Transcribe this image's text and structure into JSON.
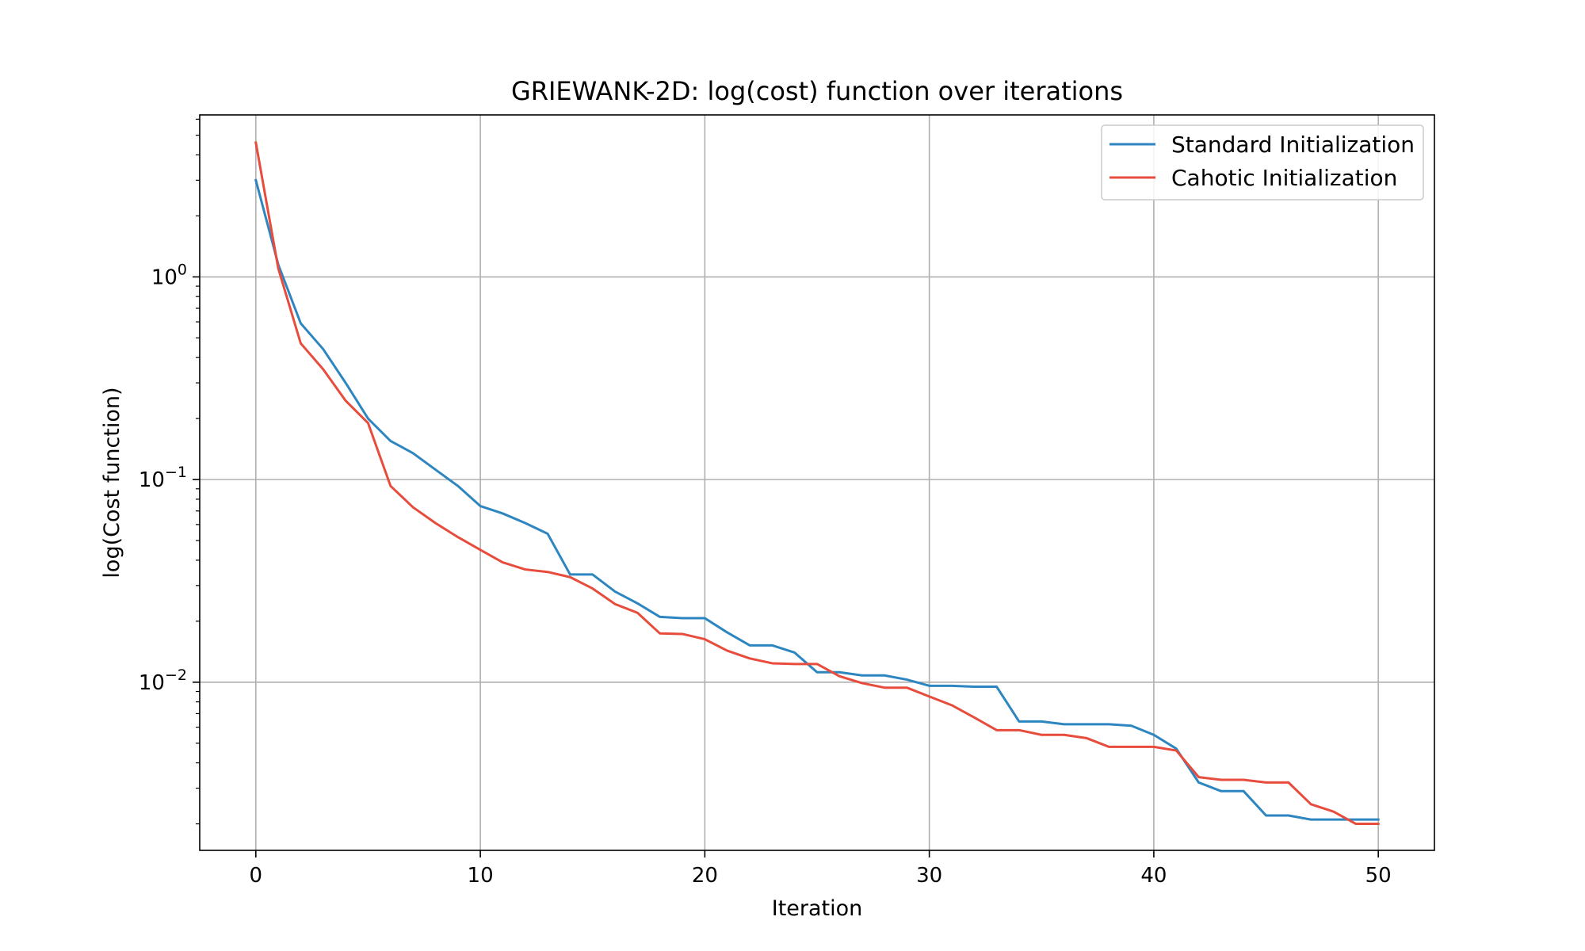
{
  "chart_data": {
    "type": "line",
    "title": "GRIEWANK-2D: log(cost) function over iterations",
    "xlabel": "Iteration",
    "ylabel": "log(Cost function)",
    "xlim": [
      -2.5,
      52.5
    ],
    "ylim": [
      0.00148,
      6.3
    ],
    "yscale": "log",
    "grid": true,
    "legend_position": "top-right",
    "x_ticks": [
      0,
      10,
      20,
      30,
      40,
      50
    ],
    "x_tick_labels": [
      "0",
      "10",
      "20",
      "30",
      "40",
      "50"
    ],
    "y_ticks": [
      {
        "value": 1,
        "base": "10",
        "exp": "0"
      },
      {
        "value": 0.1,
        "base": "10",
        "exp": "−1"
      },
      {
        "value": 0.01,
        "base": "10",
        "exp": "−2"
      }
    ],
    "x": [
      0,
      1,
      2,
      3,
      4,
      5,
      6,
      7,
      8,
      9,
      10,
      11,
      12,
      13,
      14,
      15,
      16,
      17,
      18,
      19,
      20,
      21,
      22,
      23,
      24,
      25,
      26,
      27,
      28,
      29,
      30,
      31,
      32,
      33,
      34,
      35,
      36,
      37,
      38,
      39,
      40,
      41,
      42,
      43,
      44,
      45,
      46,
      47,
      48,
      49,
      50
    ],
    "series": [
      {
        "name": "Standard Initialization",
        "color": "#2e86c1",
        "values": [
          3.0,
          1.15,
          0.59,
          0.44,
          0.3,
          0.2,
          0.155,
          0.135,
          0.112,
          0.093,
          0.074,
          0.068,
          0.061,
          0.054,
          0.034,
          0.034,
          0.028,
          0.0245,
          0.021,
          0.0207,
          0.0207,
          0.0176,
          0.0152,
          0.0152,
          0.014,
          0.0112,
          0.0112,
          0.0108,
          0.0108,
          0.0103,
          0.0096,
          0.0096,
          0.0095,
          0.0095,
          0.0064,
          0.0064,
          0.0062,
          0.0062,
          0.0062,
          0.0061,
          0.0055,
          0.0047,
          0.0032,
          0.0029,
          0.0029,
          0.0022,
          0.0022,
          0.0021,
          0.0021,
          0.0021,
          0.0021
        ]
      },
      {
        "name": "Cahotic Initialization",
        "color": "#e74c3c",
        "values": [
          4.6,
          1.1,
          0.47,
          0.35,
          0.245,
          0.19,
          0.093,
          0.073,
          0.061,
          0.052,
          0.045,
          0.039,
          0.036,
          0.035,
          0.033,
          0.029,
          0.0243,
          0.022,
          0.0174,
          0.0173,
          0.0163,
          0.0143,
          0.0131,
          0.0124,
          0.0123,
          0.0123,
          0.0107,
          0.0099,
          0.0094,
          0.0094,
          0.0085,
          0.0077,
          0.0067,
          0.0058,
          0.0058,
          0.0055,
          0.0055,
          0.0053,
          0.0048,
          0.0048,
          0.0048,
          0.0046,
          0.0034,
          0.0033,
          0.0033,
          0.0032,
          0.0032,
          0.0025,
          0.0023,
          0.002,
          0.002
        ]
      }
    ]
  }
}
